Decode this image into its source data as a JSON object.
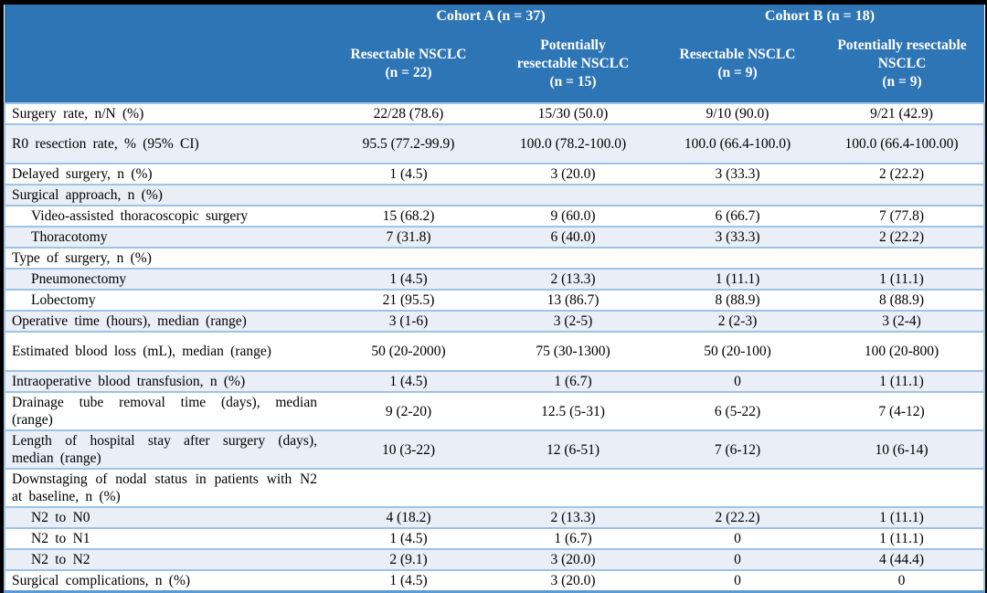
{
  "colors": {
    "frame": "#000000",
    "header_bg": "#2E75B6",
    "header_text": "#FFFFFF",
    "row_bg": "#FFFFFF",
    "row_alt_bg": "#E9EEF7",
    "border": "#9DC3E6",
    "bottom_border": "#5B9BD5",
    "body_text": "#000000"
  },
  "table": {
    "cohorts": [
      {
        "label": "Cohort A (n = 37)"
      },
      {
        "label": "Cohort B (n = 18)"
      }
    ],
    "columns": [
      {
        "label": "Resectable NSCLC\n(n = 22)"
      },
      {
        "label": "Potentially\nresectable NSCLC\n(n = 15)"
      },
      {
        "label": "Resectable NSCLC\n(n = 9)"
      },
      {
        "label": "Potentially resectable\nNSCLC\n(n = 9)"
      }
    ],
    "rows": [
      {
        "label": "Surgery rate, n/N (%)",
        "indent": false,
        "tall": false,
        "values": [
          "22/28 (78.6)",
          "15/30 (50.0)",
          "9/10 (90.0)",
          "9/21 (42.9)"
        ]
      },
      {
        "label": "R0 resection rate, % (95% CI)",
        "indent": false,
        "tall": true,
        "values": [
          "95.5 (77.2-99.9)",
          "100.0 (78.2-100.0)",
          "100.0 (66.4-100.0)",
          "100.0 (66.4-100.00)"
        ]
      },
      {
        "label": "Delayed surgery, n (%)",
        "indent": false,
        "tall": false,
        "values": [
          "1 (4.5)",
          "3 (20.0)",
          "3 (33.3)",
          "2 (22.2)"
        ]
      },
      {
        "label": "Surgical approach, n (%)",
        "indent": false,
        "tall": false,
        "values": [
          "",
          "",
          "",
          ""
        ]
      },
      {
        "label": "Video-assisted thoracoscopic surgery",
        "indent": true,
        "tall": false,
        "values": [
          "15 (68.2)",
          "9 (60.0)",
          "6 (66.7)",
          "7 (77.8)"
        ]
      },
      {
        "label": "Thoracotomy",
        "indent": true,
        "tall": false,
        "values": [
          "7 (31.8)",
          "6 (40.0)",
          "3 (33.3)",
          "2 (22.2)"
        ]
      },
      {
        "label": "Type of surgery, n (%)",
        "indent": false,
        "tall": false,
        "values": [
          "",
          "",
          "",
          ""
        ]
      },
      {
        "label": "Pneumonectomy",
        "indent": true,
        "tall": false,
        "values": [
          "1 (4.5)",
          "2 (13.3)",
          "1 (11.1)",
          "1 (11.1)"
        ]
      },
      {
        "label": "Lobectomy",
        "indent": true,
        "tall": false,
        "values": [
          "21 (95.5)",
          "13 (86.7)",
          "8 (88.9)",
          "8 (88.9)"
        ]
      },
      {
        "label": "Operative time (hours), median (range)",
        "indent": false,
        "tall": false,
        "values": [
          "3 (1-6)",
          "3 (2-5)",
          "2 (2-3)",
          "3 (2-4)"
        ]
      },
      {
        "label": "Estimated blood loss (mL), median (range)",
        "indent": false,
        "tall": true,
        "values": [
          "50 (20-2000)",
          "75 (30-1300)",
          "50 (20-100)",
          "100 (20-800)"
        ]
      },
      {
        "label": "Intraoperative blood transfusion, n (%)",
        "indent": false,
        "tall": false,
        "values": [
          "1 (4.5)",
          "1 (6.7)",
          "0",
          "1 (11.1)"
        ]
      },
      {
        "label": "Drainage tube removal time (days), median (range)",
        "indent": false,
        "tall": false,
        "values": [
          "9 (2-20)",
          "12.5 (5-31)",
          "6 (5-22)",
          "7 (4-12)"
        ]
      },
      {
        "label": "Length of hospital stay after surgery (days), median (range)",
        "indent": false,
        "tall": false,
        "values": [
          "10 (3-22)",
          "12 (6-51)",
          "7 (6-12)",
          "10 (6-14)"
        ]
      },
      {
        "label": "Downstaging of nodal status in patients with N2 at baseline, n (%)",
        "indent": false,
        "tall": false,
        "values": [
          "",
          "",
          "",
          ""
        ]
      },
      {
        "label": "N2 to N0",
        "indent": true,
        "tall": false,
        "values": [
          "4 (18.2)",
          "2 (13.3)",
          "2 (22.2)",
          "1 (11.1)"
        ]
      },
      {
        "label": "N2 to N1",
        "indent": true,
        "tall": false,
        "values": [
          "1 (4.5)",
          "1 (6.7)",
          "0",
          "1 (11.1)"
        ]
      },
      {
        "label": "N2 to N2",
        "indent": true,
        "tall": false,
        "values": [
          "2 (9.1)",
          "3 (20.0)",
          "0",
          "4 (44.4)"
        ]
      },
      {
        "label": "Surgical complications, n (%)",
        "indent": false,
        "tall": false,
        "values": [
          "1 (4.5)",
          "3 (20.0)",
          "0",
          "0"
        ]
      }
    ]
  }
}
